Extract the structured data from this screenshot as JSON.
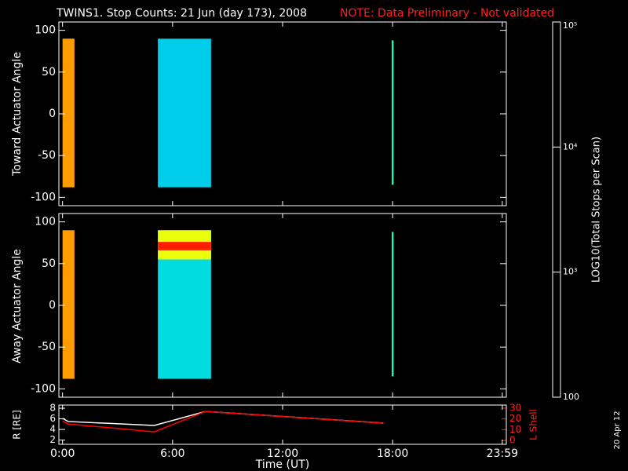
{
  "page": {
    "title": "TWINS1. Stop Counts: 21 Jun (day 173), 2008",
    "note": "NOTE: Data Preliminary - Not validated",
    "stamp": "20 Apr 12",
    "xlabel": "Time (UT)",
    "xlim": [
      -0.2,
      24.2
    ],
    "xticks": [
      {
        "value": 0,
        "label": "0:00"
      },
      {
        "value": 6,
        "label": "6:00"
      },
      {
        "value": 12,
        "label": "12:00"
      },
      {
        "value": 18,
        "label": "18:00"
      },
      {
        "value": 23.98,
        "label": "23:59"
      }
    ]
  },
  "colorbar": {
    "label": "LOG10(Total Stops per Scan)",
    "lim": [
      100,
      100000
    ],
    "log": true,
    "ticks": [
      100,
      {
        "value": 1000,
        "label": "10³"
      },
      {
        "value": 10000,
        "label": "10⁴"
      },
      {
        "value": 100000,
        "label": "10⁵"
      }
    ],
    "colors": [
      "#00007f",
      "#0000ff",
      "#00a8ff",
      "#00ffcc",
      "#80ff40",
      "#ffff00",
      "#ff8000",
      "#ff0000"
    ]
  },
  "chart_data": [
    {
      "type": "heatmap",
      "ylabel": "Toward Actuator Angle",
      "ylim": [
        -110,
        110
      ],
      "yticks": [
        -100,
        -50,
        0,
        50,
        100
      ],
      "segments": [
        {
          "start": 0,
          "end": 0.65,
          "angle": [
            -88,
            90
          ],
          "value": 30000
        },
        {
          "start": 5.2,
          "end": 8.1,
          "angle": [
            -88,
            90
          ],
          "value": 1100
        },
        {
          "start": 17.95,
          "end": 18.05,
          "angle": [
            -85,
            88
          ],
          "value": 2200
        }
      ]
    },
    {
      "type": "heatmap",
      "ylabel": "Away Actuator Angle",
      "ylim": [
        -110,
        110
      ],
      "yticks": [
        -100,
        -50,
        0,
        50,
        100
      ],
      "segments": [
        {
          "start": 0,
          "end": 0.65,
          "angle": [
            -88,
            90
          ],
          "value": 30000
        },
        {
          "start": 5.2,
          "end": 8.1,
          "angle": [
            -88,
            90
          ],
          "value": 1300
        },
        {
          "start": 5.2,
          "end": 8.1,
          "angle": [
            55,
            90
          ],
          "value": 12000
        },
        {
          "start": 5.2,
          "end": 8.1,
          "angle": [
            66,
            76
          ],
          "value": 80000
        },
        {
          "start": 17.95,
          "end": 18.05,
          "angle": [
            -85,
            88
          ],
          "value": 2200
        }
      ]
    },
    {
      "type": "line",
      "ylabel": "R [RE]",
      "y2label": "L Shell",
      "ylim": [
        1.2,
        8.6
      ],
      "yticks": [
        2,
        4,
        6,
        8
      ],
      "y2lim": [
        -3.6,
        32.9
      ],
      "y2ticks": [
        0,
        10,
        20,
        30
      ],
      "x": [
        0,
        0.3,
        5,
        7.8,
        17.5
      ],
      "series": [
        {
          "color": "#ffffff",
          "values": [
            6.1,
            5.5,
            4.75,
            7.4,
            5.2
          ]
        },
        {
          "color": "#ff0000",
          "axis": "y2",
          "values": [
            18,
            15.3,
            8,
            27,
            16
          ]
        }
      ]
    }
  ]
}
